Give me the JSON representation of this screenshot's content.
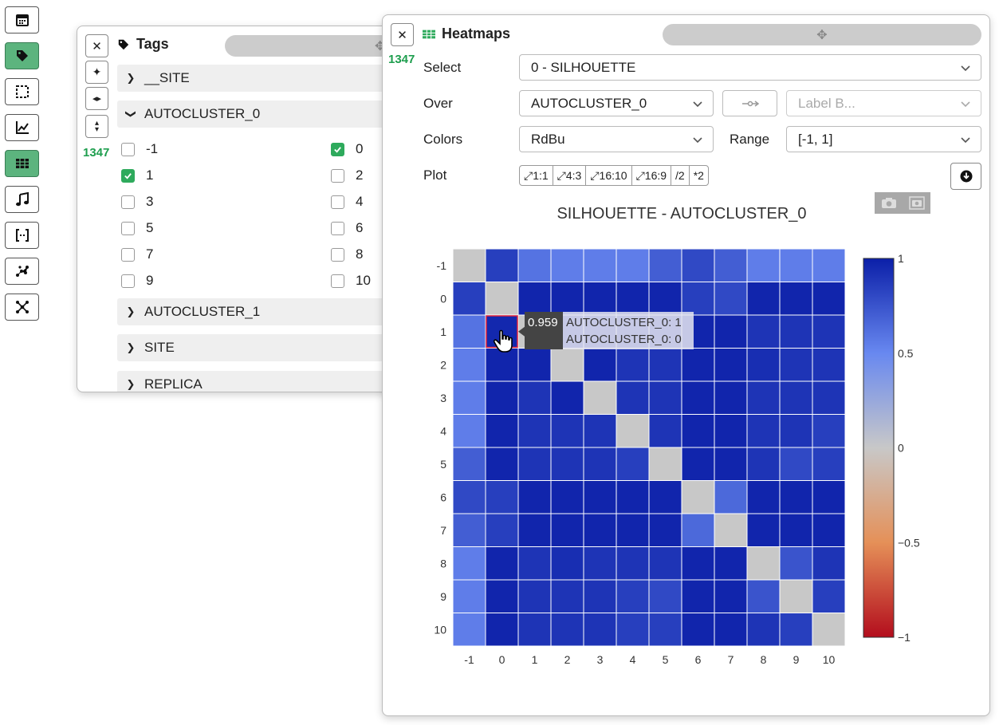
{
  "toolbar": {
    "items": [
      {
        "icon": "calendar-icon",
        "active": false
      },
      {
        "icon": "tag-icon",
        "active": true
      },
      {
        "icon": "selection-icon",
        "active": false
      },
      {
        "icon": "chart-line-icon",
        "active": false
      },
      {
        "icon": "table-grid-icon",
        "active": true
      },
      {
        "icon": "music-icon",
        "active": false
      },
      {
        "icon": "brackets-icon",
        "active": false
      },
      {
        "icon": "scatter-icon",
        "active": false
      },
      {
        "icon": "network-icon",
        "active": false
      }
    ]
  },
  "tags_panel": {
    "title": "Tags",
    "count": "1347",
    "groups": [
      {
        "label": "__SITE",
        "expanded": false
      },
      {
        "label": "AUTOCLUSTER_0",
        "expanded": true
      },
      {
        "label": "AUTOCLUSTER_1",
        "expanded": false
      },
      {
        "label": "SITE",
        "expanded": false
      },
      {
        "label": "REPLICA",
        "expanded": false
      }
    ],
    "items": [
      {
        "label": "-1",
        "checked": false
      },
      {
        "label": "0",
        "checked": true
      },
      {
        "label": "1",
        "checked": true
      },
      {
        "label": "2",
        "checked": false
      },
      {
        "label": "3",
        "checked": false
      },
      {
        "label": "4",
        "checked": false
      },
      {
        "label": "5",
        "checked": false
      },
      {
        "label": "6",
        "checked": false
      },
      {
        "label": "7",
        "checked": false
      },
      {
        "label": "8",
        "checked": false
      },
      {
        "label": "9",
        "checked": false
      },
      {
        "label": "10",
        "checked": false
      }
    ]
  },
  "heatmaps_panel": {
    "title": "Heatmaps",
    "count": "1347",
    "select_label": "Select",
    "select_value": "0 - SILHOUETTE",
    "over_label": "Over",
    "over_value": "AUTOCLUSTER_0",
    "label_b_placeholder": "Label B...",
    "colors_label": "Colors",
    "colors_value": "RdBu",
    "range_label": "Range",
    "range_value": "[-1, 1]",
    "plot_label": "Plot",
    "ratio_buttons": [
      "1:1",
      "4:3",
      "16:10",
      "16:9",
      "/2",
      "*2"
    ]
  },
  "chart_data": {
    "type": "heatmap",
    "title": "SILHOUETTE - AUTOCLUSTER_0",
    "x": [
      "-1",
      "0",
      "1",
      "2",
      "3",
      "4",
      "5",
      "6",
      "7",
      "8",
      "9",
      "10"
    ],
    "y": [
      "-1",
      "0",
      "1",
      "2",
      "3",
      "4",
      "5",
      "6",
      "7",
      "8",
      "9",
      "10"
    ],
    "z": [
      [
        null,
        0.85,
        0.6,
        0.55,
        0.55,
        0.55,
        0.7,
        0.8,
        0.7,
        0.55,
        0.55,
        0.55
      ],
      [
        0.85,
        null,
        0.97,
        0.97,
        0.97,
        0.97,
        0.97,
        0.85,
        0.8,
        0.97,
        0.97,
        0.97
      ],
      [
        0.6,
        0.959,
        null,
        0.97,
        0.97,
        0.97,
        0.97,
        0.97,
        0.97,
        0.9,
        0.9,
        0.9
      ],
      [
        0.55,
        0.97,
        0.97,
        null,
        0.97,
        0.9,
        0.9,
        0.97,
        0.97,
        0.93,
        0.9,
        0.9
      ],
      [
        0.55,
        0.97,
        0.9,
        0.97,
        null,
        0.9,
        0.9,
        0.97,
        0.97,
        0.9,
        0.9,
        0.9
      ],
      [
        0.55,
        0.97,
        0.9,
        0.9,
        0.9,
        null,
        0.9,
        0.97,
        0.97,
        0.9,
        0.9,
        0.85
      ],
      [
        0.7,
        0.97,
        0.9,
        0.9,
        0.9,
        0.85,
        null,
        0.97,
        0.97,
        0.9,
        0.8,
        0.85
      ],
      [
        0.8,
        0.85,
        0.97,
        0.97,
        0.97,
        0.97,
        0.97,
        null,
        0.65,
        0.97,
        0.97,
        0.97
      ],
      [
        0.7,
        0.85,
        0.97,
        0.97,
        0.97,
        0.97,
        0.97,
        0.65,
        null,
        0.97,
        0.97,
        0.97
      ],
      [
        0.55,
        0.97,
        0.9,
        0.93,
        0.9,
        0.9,
        0.9,
        0.97,
        0.97,
        null,
        0.75,
        0.9
      ],
      [
        0.55,
        0.97,
        0.9,
        0.9,
        0.9,
        0.85,
        0.8,
        0.97,
        0.97,
        0.75,
        null,
        0.85
      ],
      [
        0.55,
        0.97,
        0.9,
        0.9,
        0.9,
        0.85,
        0.85,
        0.97,
        0.97,
        0.9,
        0.85,
        null
      ]
    ],
    "zmin": -1,
    "zmax": 1,
    "colorscale": "RdBu",
    "colorbar_ticks": [
      "1",
      "0.5",
      "0",
      "−0.5",
      "−1"
    ],
    "highlight": {
      "row": "1",
      "col": "0"
    },
    "tooltip": {
      "value": "0.959",
      "line1": "AUTOCLUSTER_0: 1",
      "line2": "AUTOCLUSTER_0: 0"
    }
  }
}
